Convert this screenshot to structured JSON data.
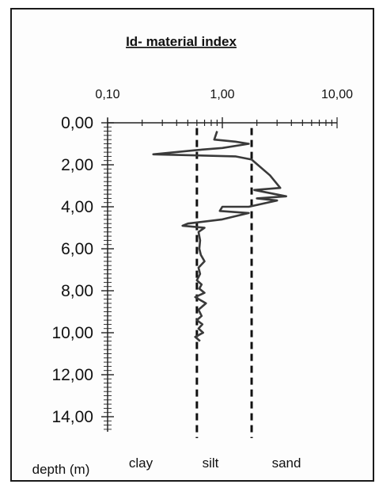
{
  "chart_data": {
    "type": "line",
    "title": "Id- material index",
    "x_scale": "log",
    "xlim": [
      0.1,
      10
    ],
    "ylim": [
      0,
      15
    ],
    "y_inverted": true,
    "xticks": [
      "0,10",
      "1,00",
      "10,00"
    ],
    "yticks": [
      "0,00",
      "2,00",
      "4,00",
      "6,00",
      "8,00",
      "10,00",
      "12,00",
      "14,00"
    ],
    "ytick_values": [
      0,
      2,
      4,
      6,
      8,
      10,
      12,
      14
    ],
    "xtick_values": [
      0.1,
      1,
      10
    ],
    "ylabel": "depth (m)",
    "zone_labels": [
      "clay",
      "silt",
      "sand"
    ],
    "boundaries": [
      {
        "x": 0.6,
        "style": "dashed"
      },
      {
        "x": 1.8,
        "style": "dashed"
      }
    ],
    "series": [
      {
        "x": [
          0.9,
          0.85,
          1.3,
          1.7,
          1.0,
          0.6,
          0.25,
          1.3,
          1.8,
          2.6,
          3.2,
          1.9,
          3.6,
          2.0,
          3.0,
          1.7,
          1.0,
          0.95,
          1.7,
          1.0,
          0.5,
          0.45,
          0.7,
          0.62,
          0.64,
          0.63,
          0.65,
          0.7,
          0.62,
          0.64,
          0.6,
          0.66,
          0.63,
          0.7,
          0.58,
          0.72,
          0.62,
          0.66,
          0.6,
          0.67,
          0.62,
          0.68,
          0.58,
          0.64
        ],
        "y": [
          0.4,
          0.8,
          0.9,
          1.0,
          1.2,
          1.3,
          1.5,
          1.6,
          1.75,
          2.5,
          3.1,
          3.2,
          3.5,
          3.6,
          3.7,
          4.0,
          4.0,
          4.2,
          4.3,
          4.6,
          4.8,
          4.9,
          5.0,
          5.2,
          5.6,
          6.0,
          6.3,
          6.6,
          6.9,
          7.2,
          7.5,
          7.7,
          7.9,
          8.1,
          8.3,
          8.6,
          8.9,
          9.2,
          9.4,
          9.6,
          9.8,
          10.0,
          10.2,
          10.4
        ]
      }
    ]
  }
}
